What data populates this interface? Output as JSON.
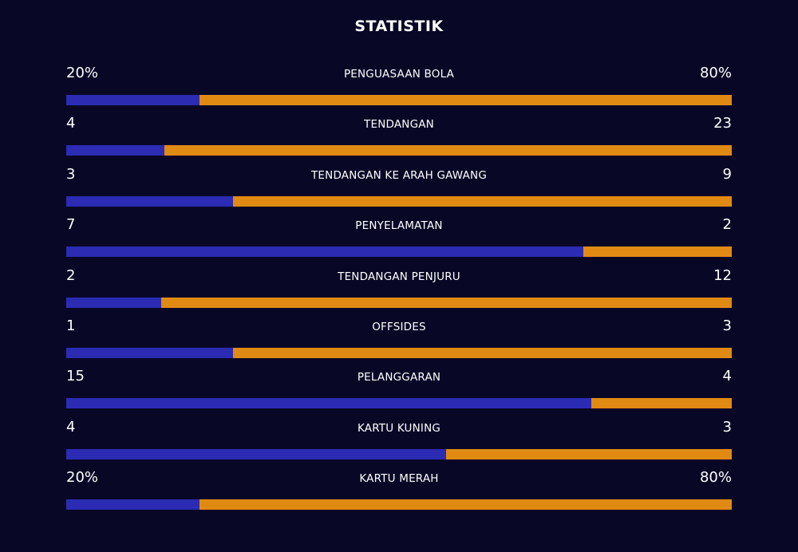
{
  "title": "STATISTIK",
  "colors": {
    "background": "#080826",
    "left_team": "#2b2bb4",
    "right_team": "#e08a13"
  },
  "stats": [
    {
      "label": "PENGUASAAN BOLA",
      "left": "20%",
      "right": "80%",
      "left_share": 0.2
    },
    {
      "label": "TENDANGAN",
      "left": "4",
      "right": "23",
      "left_share": 0.148
    },
    {
      "label": "TENDANGAN KE ARAH GAWANG",
      "left": "3",
      "right": "9",
      "left_share": 0.25
    },
    {
      "label": "PENYELAMATAN",
      "left": "7",
      "right": "2",
      "left_share": 0.777
    },
    {
      "label": "TENDANGAN PENJURU",
      "left": "2",
      "right": "12",
      "left_share": 0.143
    },
    {
      "label": "OFFSIDES",
      "left": "1",
      "right": "3",
      "left_share": 0.25
    },
    {
      "label": "PELANGGARAN",
      "left": "15",
      "right": "4",
      "left_share": 0.789
    },
    {
      "label": "KARTU KUNING",
      "left": "4",
      "right": "3",
      "left_share": 0.571
    },
    {
      "label": "KARTU MERAH",
      "left": "20%",
      "right": "80%",
      "left_share": 0.2
    }
  ]
}
